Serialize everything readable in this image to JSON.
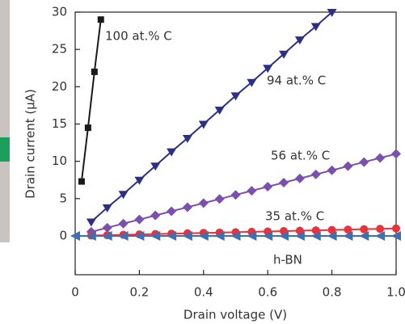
{
  "chart_data": {
    "type": "line",
    "xlabel": "Drain voltage (V)",
    "ylabel": "Drain current (μA)",
    "xlim": [
      0,
      1
    ],
    "xticks": [
      0,
      0.2,
      0.4,
      0.6,
      0.8,
      {
        "value": 1,
        "label": "1.0"
      }
    ],
    "ylim": [
      -5.2,
      30
    ],
    "yticks": [
      0,
      5,
      10,
      15,
      20,
      25,
      30
    ],
    "series": [
      {
        "name": "100 at.% C",
        "color": "#1a1a1a",
        "marker": "square",
        "x": [
          0.02,
          0.04,
          0.06,
          0.08
        ],
        "values": [
          7.3,
          14.5,
          22,
          29
        ]
      },
      {
        "name": "94 at.% C",
        "color": "#2b2f86",
        "marker": "triangle-down",
        "x": [
          0.05,
          0.1,
          0.15,
          0.2,
          0.25,
          0.3,
          0.35,
          0.4,
          0.45,
          0.5,
          0.55,
          0.6,
          0.65,
          0.7,
          0.75,
          0.8
        ],
        "values": [
          1.9,
          3.8,
          5.6,
          7.5,
          9.4,
          11.3,
          13.1,
          15,
          16.9,
          18.8,
          20.6,
          22.5,
          24.4,
          26.3,
          28.1,
          30
        ]
      },
      {
        "name": "56 at.% C",
        "color": "#7b4fb0",
        "marker": "diamond",
        "x": [
          0.05,
          0.1,
          0.15,
          0.2,
          0.25,
          0.3,
          0.35,
          0.4,
          0.45,
          0.5,
          0.55,
          0.6,
          0.65,
          0.7,
          0.75,
          0.8,
          0.85,
          0.9,
          0.95,
          1
        ],
        "values": [
          0.55,
          1.1,
          1.65,
          2.2,
          2.75,
          3.3,
          3.85,
          4.4,
          4.95,
          5.5,
          6.05,
          6.6,
          7.15,
          7.7,
          8.25,
          8.8,
          9.35,
          9.9,
          10.45,
          11
        ]
      },
      {
        "name": "35 at.% C",
        "color": "#e8323c",
        "marker": "circle",
        "x": [
          0.05,
          0.1,
          0.15,
          0.2,
          0.25,
          0.3,
          0.35,
          0.4,
          0.45,
          0.5,
          0.55,
          0.6,
          0.65,
          0.7,
          0.75,
          0.8,
          0.85,
          0.9,
          0.95,
          1
        ],
        "values": [
          0.05,
          0.1,
          0.15,
          0.2,
          0.25,
          0.3,
          0.35,
          0.4,
          0.45,
          0.5,
          0.55,
          0.6,
          0.65,
          0.7,
          0.75,
          0.8,
          0.85,
          0.9,
          0.95,
          1
        ]
      },
      {
        "name": "h-BN",
        "color": "#3f6fb0",
        "marker": "triangle-left",
        "x": [
          0,
          0.05,
          0.1,
          0.15,
          0.2,
          0.25,
          0.3,
          0.35,
          0.4,
          0.45,
          0.5,
          0.55,
          0.6,
          0.65,
          0.7,
          0.75,
          0.8,
          0.85,
          0.9,
          0.95,
          1
        ],
        "values": [
          0,
          0,
          0,
          0,
          0,
          0,
          0,
          0,
          0,
          0,
          0,
          0,
          0,
          0,
          0,
          0,
          0,
          0,
          0,
          0,
          0
        ]
      }
    ]
  }
}
